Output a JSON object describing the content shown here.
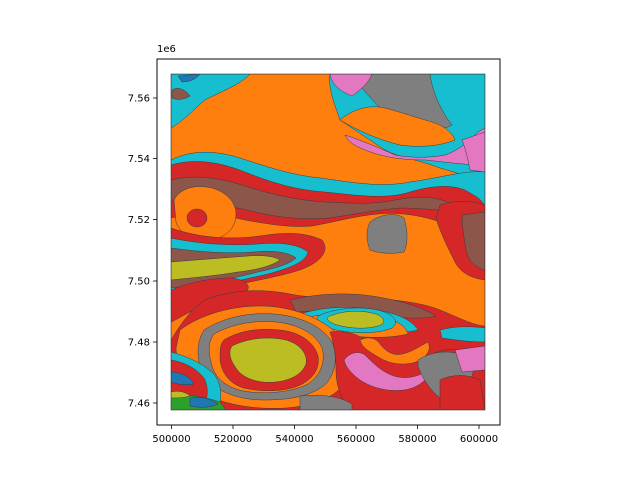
{
  "map": {
    "offset_text": "1e6",
    "x_ticks": [
      "500000",
      "520000",
      "540000",
      "560000",
      "580000",
      "600000"
    ],
    "y_ticks": [
      "7.46",
      "7.48",
      "7.50",
      "7.52",
      "7.54",
      "7.56"
    ],
    "x_range": [
      500000,
      602000
    ],
    "y_range": [
      7.458,
      7.568
    ],
    "unit_colors": {
      "orange": "#ff7f0e",
      "red": "#d62728",
      "brown": "#8c564b",
      "cyan": "#17becf",
      "gray": "#7f7f7f",
      "olive": "#bcbd22",
      "pink": "#e377c2",
      "blue": "#1f77b4",
      "green": "#2ca02c"
    }
  }
}
